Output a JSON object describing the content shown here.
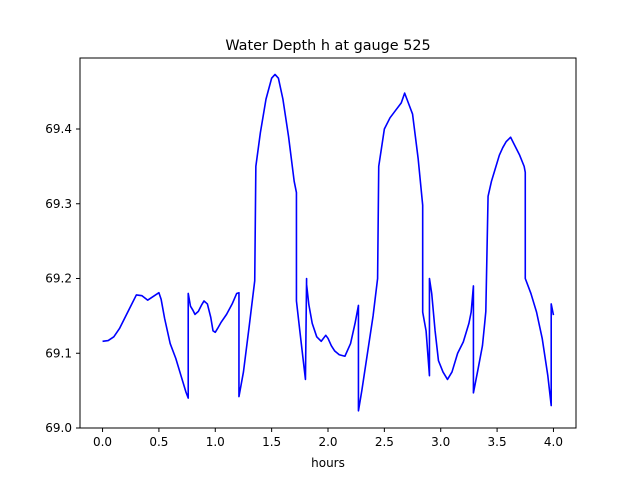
{
  "chart_data": {
    "type": "line",
    "title": "Water Depth h at gauge 525",
    "xlabel": "hours",
    "ylabel": "",
    "xlim": [
      -0.2,
      4.2
    ],
    "ylim": [
      69.0,
      69.495
    ],
    "grid": false,
    "xticks": [
      0.0,
      0.5,
      1.0,
      1.5,
      2.0,
      2.5,
      3.0,
      3.5,
      4.0
    ],
    "xtick_labels": [
      "0.0",
      "0.5",
      "1.0",
      "1.5",
      "2.0",
      "2.5",
      "3.0",
      "3.5",
      "4.0"
    ],
    "yticks": [
      69.0,
      69.1,
      69.2,
      69.3,
      69.4
    ],
    "ytick_labels": [
      "69.0",
      "69.1",
      "69.2",
      "69.3",
      "69.4"
    ],
    "series": [
      {
        "color": "#0000ff",
        "x": [
          0.0,
          0.05,
          0.1,
          0.15,
          0.2,
          0.25,
          0.3,
          0.35,
          0.4,
          0.45,
          0.5,
          0.52,
          0.55,
          0.6,
          0.65,
          0.7,
          0.74,
          0.76,
          0.76,
          0.78,
          0.8,
          0.82,
          0.85,
          0.88,
          0.9,
          0.93,
          0.96,
          0.98,
          1.0,
          1.02,
          1.05,
          1.1,
          1.15,
          1.19,
          1.21,
          1.21,
          1.25,
          1.3,
          1.35,
          1.36,
          1.4,
          1.45,
          1.5,
          1.53,
          1.56,
          1.6,
          1.65,
          1.7,
          1.72,
          1.72,
          1.75,
          1.8,
          1.81,
          1.81,
          1.83,
          1.86,
          1.9,
          1.94,
          1.98,
          2.0,
          2.03,
          2.06,
          2.1,
          2.15,
          2.2,
          2.24,
          2.27,
          2.27,
          2.3,
          2.35,
          2.4,
          2.44,
          2.45,
          2.48,
          2.5,
          2.55,
          2.6,
          2.65,
          2.68,
          2.7,
          2.75,
          2.8,
          2.84,
          2.84,
          2.87,
          2.9,
          2.9,
          2.92,
          2.95,
          2.98,
          3.02,
          3.06,
          3.1,
          3.15,
          3.2,
          3.25,
          3.27,
          3.29,
          3.29,
          3.33,
          3.37,
          3.39,
          3.4,
          3.42,
          3.45,
          3.48,
          3.52,
          3.55,
          3.58,
          3.62,
          3.65,
          3.7,
          3.74,
          3.75,
          3.75,
          3.8,
          3.85,
          3.9,
          3.95,
          3.98,
          3.98,
          4.0
        ],
        "y": [
          69.116,
          69.117,
          69.122,
          69.133,
          69.148,
          69.163,
          69.178,
          69.177,
          69.171,
          69.176,
          69.181,
          69.172,
          69.147,
          69.113,
          69.093,
          69.068,
          69.048,
          69.04,
          69.18,
          69.163,
          69.158,
          69.152,
          69.156,
          69.165,
          69.17,
          69.166,
          69.148,
          69.13,
          69.128,
          69.133,
          69.141,
          69.152,
          69.166,
          69.18,
          69.181,
          69.042,
          69.075,
          69.135,
          69.197,
          69.35,
          69.395,
          69.44,
          69.468,
          69.473,
          69.468,
          69.44,
          69.39,
          69.33,
          69.315,
          69.17,
          69.13,
          69.065,
          69.2,
          69.192,
          69.165,
          69.14,
          69.122,
          69.116,
          69.124,
          69.12,
          69.11,
          69.103,
          69.098,
          69.096,
          69.113,
          69.14,
          69.164,
          69.023,
          69.05,
          69.1,
          69.15,
          69.2,
          69.35,
          69.38,
          69.4,
          69.415,
          69.425,
          69.435,
          69.448,
          69.44,
          69.42,
          69.36,
          69.298,
          69.155,
          69.13,
          69.07,
          69.2,
          69.18,
          69.13,
          69.09,
          69.075,
          69.065,
          69.075,
          69.1,
          69.115,
          69.14,
          69.155,
          69.19,
          69.047,
          69.078,
          69.11,
          69.14,
          69.156,
          69.31,
          69.33,
          69.345,
          69.365,
          69.375,
          69.383,
          69.389,
          69.38,
          69.365,
          69.35,
          69.342,
          69.2,
          69.18,
          69.155,
          69.12,
          69.07,
          69.03,
          69.166,
          69.151
        ]
      }
    ]
  }
}
